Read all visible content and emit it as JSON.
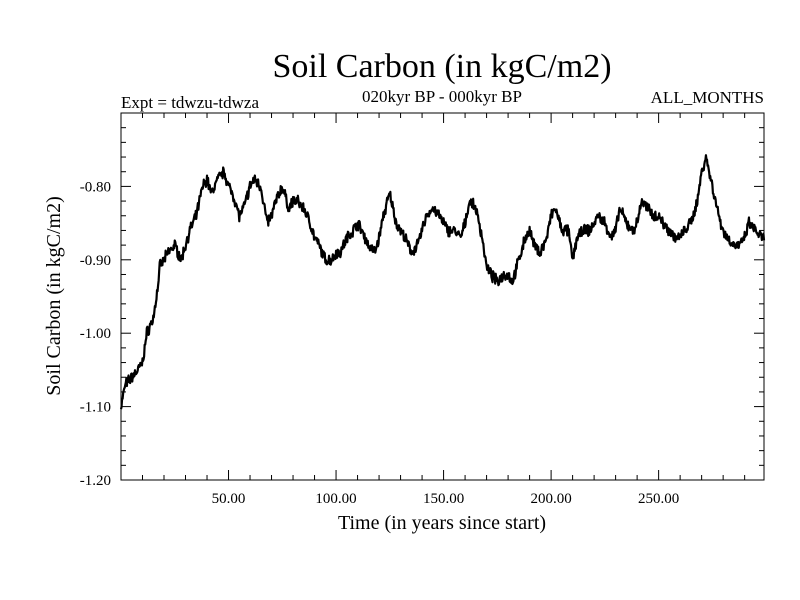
{
  "chart_data": {
    "type": "line",
    "title": "Soil Carbon (in kgC/m2)",
    "experiment_label": "Expt = tdwzu-tdwza",
    "period_label": "020kyr BP - 000kyr BP",
    "months_label": "ALL_MONTHS",
    "xlabel": "Time (in years since start)",
    "ylabel": "Soil Carbon (in kgC/m2)",
    "xlim": [
      0,
      299
    ],
    "ylim": [
      -1.2,
      -0.7
    ],
    "x_ticks": [
      50,
      100,
      150,
      200,
      250
    ],
    "x_tick_labels": [
      "50.00",
      "100.00",
      "150.00",
      "200.00",
      "250.00"
    ],
    "y_ticks": [
      -1.2,
      -1.1,
      -1.0,
      -0.9,
      -0.8
    ],
    "y_tick_labels": [
      "-1.20",
      "-1.10",
      "-1.00",
      "-0.90",
      "-0.80"
    ],
    "series": [
      {
        "name": "Soil Carbon",
        "x": [
          0,
          2,
          5,
          8,
          10,
          12,
          15,
          17,
          18,
          20,
          22,
          25,
          28,
          30,
          32,
          35,
          38,
          40,
          42,
          45,
          48,
          50,
          52,
          55,
          57,
          60,
          62,
          65,
          68,
          70,
          72,
          75,
          78,
          80,
          82,
          85,
          88,
          90,
          92,
          95,
          98,
          100,
          102,
          105,
          108,
          110,
          112,
          115,
          118,
          120,
          122,
          125,
          128,
          130,
          132,
          135,
          138,
          140,
          142,
          145,
          148,
          150,
          152,
          155,
          158,
          160,
          162,
          165,
          168,
          170,
          172,
          175,
          178,
          180,
          182,
          185,
          188,
          190,
          192,
          195,
          198,
          200,
          202,
          205,
          208,
          210,
          212,
          215,
          218,
          220,
          222,
          225,
          228,
          230,
          232,
          235,
          238,
          240,
          242,
          245,
          248,
          250,
          252,
          255,
          258,
          260,
          262,
          265,
          268,
          270,
          272,
          275,
          278,
          280,
          282,
          285,
          288,
          290,
          292,
          295,
          298
        ],
        "values": [
          -1.1,
          -1.07,
          -1.06,
          -1.05,
          -1.04,
          -1.0,
          -0.98,
          -0.94,
          -0.91,
          -0.9,
          -0.89,
          -0.88,
          -0.9,
          -0.88,
          -0.86,
          -0.84,
          -0.8,
          -0.79,
          -0.81,
          -0.79,
          -0.78,
          -0.8,
          -0.81,
          -0.84,
          -0.83,
          -0.8,
          -0.79,
          -0.8,
          -0.85,
          -0.84,
          -0.82,
          -0.8,
          -0.83,
          -0.82,
          -0.82,
          -0.83,
          -0.85,
          -0.87,
          -0.88,
          -0.9,
          -0.9,
          -0.89,
          -0.89,
          -0.87,
          -0.86,
          -0.85,
          -0.86,
          -0.88,
          -0.89,
          -0.87,
          -0.84,
          -0.81,
          -0.85,
          -0.86,
          -0.87,
          -0.89,
          -0.88,
          -0.86,
          -0.84,
          -0.83,
          -0.84,
          -0.85,
          -0.86,
          -0.86,
          -0.87,
          -0.85,
          -0.82,
          -0.83,
          -0.87,
          -0.91,
          -0.92,
          -0.93,
          -0.92,
          -0.92,
          -0.93,
          -0.9,
          -0.87,
          -0.86,
          -0.88,
          -0.89,
          -0.87,
          -0.84,
          -0.83,
          -0.86,
          -0.86,
          -0.9,
          -0.87,
          -0.86,
          -0.86,
          -0.85,
          -0.84,
          -0.85,
          -0.87,
          -0.86,
          -0.83,
          -0.85,
          -0.86,
          -0.85,
          -0.82,
          -0.83,
          -0.84,
          -0.84,
          -0.85,
          -0.86,
          -0.87,
          -0.87,
          -0.86,
          -0.85,
          -0.82,
          -0.78,
          -0.76,
          -0.8,
          -0.84,
          -0.86,
          -0.87,
          -0.88,
          -0.88,
          -0.87,
          -0.85,
          -0.86,
          -0.87
        ]
      }
    ]
  }
}
